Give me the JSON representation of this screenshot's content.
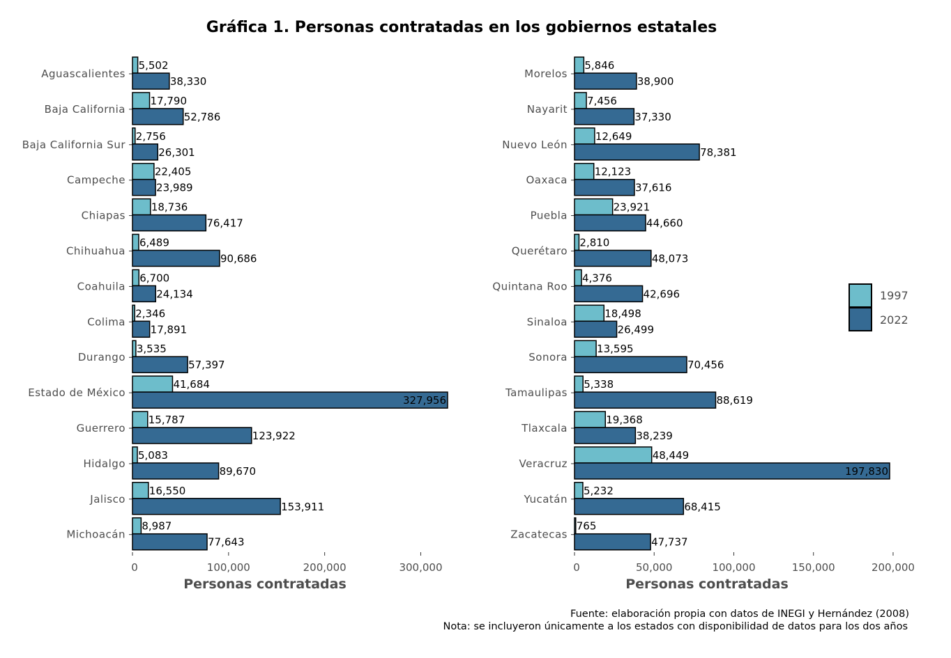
{
  "chart_data": {
    "type": "bar",
    "orientation": "horizontal",
    "title": "Gráfica 1. Personas contratadas en los gobiernos estatales",
    "legend": {
      "position": "right",
      "entries": [
        "1997",
        "2022"
      ]
    },
    "colors": {
      "1997": "#6dbdcb",
      "2022": "#356a93"
    },
    "source": "Fuente: elaboración propia con datos de INEGI y Hernández (2008)",
    "note": "Nota: se incluyeron únicamente a los estados con disponibilidad de datos para los dos años",
    "panels": [
      {
        "xlabel": "Personas contratadas",
        "xlim": [
          0,
          327956
        ],
        "xticks": [
          0,
          100000,
          200000,
          300000
        ],
        "xtick_labels": [
          "0",
          "100,000",
          "200,000",
          "300,000"
        ],
        "categories": [
          "Aguascalientes",
          "Baja California",
          "Baja California Sur",
          "Campeche",
          "Chiapas",
          "Chihuahua",
          "Coahuila",
          "Colima",
          "Durango",
          "Estado de México",
          "Guerrero",
          "Hidalgo",
          "Jalisco",
          "Michoacán"
        ],
        "series": [
          {
            "name": "1997",
            "values": [
              5502,
              17790,
              2756,
              22405,
              18736,
              6489,
              6700,
              2346,
              3535,
              41684,
              15787,
              5083,
              16550,
              8987
            ],
            "labels": [
              "5,502",
              "17,790",
              "2,756",
              "22,405",
              "18,736",
              "6,489",
              "6,700",
              "2,346",
              "3,535",
              "41,684",
              "15,787",
              "5,083",
              "16,550",
              "8,987"
            ]
          },
          {
            "name": "2022",
            "values": [
              38330,
              52786,
              26301,
              23989,
              76417,
              90686,
              24134,
              17891,
              57397,
              327956,
              123922,
              89670,
              153911,
              77643
            ],
            "labels": [
              "38,330",
              "52,786",
              "26,301",
              "23,989",
              "76,417",
              "90,686",
              "24,134",
              "17,891",
              "57,397",
              "327,956",
              "123,922",
              "89,670",
              "153,911",
              "77,643"
            ]
          }
        ]
      },
      {
        "xlabel": "Personas contratadas",
        "xlim": [
          0,
          197830
        ],
        "xticks": [
          0,
          50000,
          100000,
          150000,
          200000
        ],
        "xtick_labels": [
          "0",
          "50,000",
          "100,000",
          "150,000",
          "200,000"
        ],
        "categories": [
          "Morelos",
          "Nayarit",
          "Nuevo León",
          "Oaxaca",
          "Puebla",
          "Querétaro",
          "Quintana Roo",
          "Sinaloa",
          "Sonora",
          "Tamaulipas",
          "Tlaxcala",
          "Veracruz",
          "Yucatán",
          "Zacatecas"
        ],
        "series": [
          {
            "name": "1997",
            "values": [
              5846,
              7456,
              12649,
              12123,
              23921,
              2810,
              4376,
              18498,
              13595,
              5338,
              19368,
              48449,
              5232,
              765
            ],
            "labels": [
              "5,846",
              "7,456",
              "12,649",
              "12,123",
              "23,921",
              "2,810",
              "4,376",
              "18,498",
              "13,595",
              "5,338",
              "19,368",
              "48,449",
              "5,232",
              "765"
            ]
          },
          {
            "name": "2022",
            "values": [
              38900,
              37330,
              78381,
              37616,
              44660,
              48073,
              42696,
              26499,
              70456,
              88619,
              38239,
              197830,
              68415,
              47737
            ],
            "labels": [
              "38,900",
              "37,330",
              "78,381",
              "37,616",
              "44,660",
              "48,073",
              "42,696",
              "26,499",
              "70,456",
              "88,619",
              "38,239",
              "197,830",
              "68,415",
              "47,737"
            ]
          }
        ]
      }
    ]
  }
}
